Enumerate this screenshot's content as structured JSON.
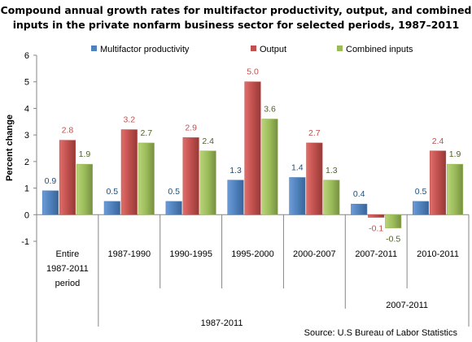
{
  "title_line1": "Compound annual growth rates for multifactor productivity, output, and combined",
  "title_line2": "inputs in the private nonfarm business sector for selected periods, 1987–2011",
  "source": "Source: U.S Bureau of Labor Statistics",
  "chart_data": {
    "type": "bar",
    "title": "Compound annual growth rates for multifactor productivity, output, and combined inputs in the private nonfarm business sector for selected periods, 1987–2011",
    "ylabel": "Percent change",
    "ylim": [
      -1,
      6
    ],
    "yticks": [
      "-1",
      "0",
      "1",
      "2",
      "3",
      "4",
      "5",
      "6"
    ],
    "legend": "top",
    "categories": [
      [
        "Entire",
        "1987-2011",
        "period"
      ],
      [
        "1987-1990"
      ],
      [
        "1990-1995"
      ],
      [
        "1995-2000"
      ],
      [
        "2000-2007"
      ],
      [
        "2007-2011"
      ],
      [
        "2010-2011"
      ]
    ],
    "group_labels": [
      {
        "text": "1987-2011",
        "from": 1,
        "to": 4
      },
      {
        "text": "2007-2011",
        "from": 5,
        "to": 6
      }
    ],
    "series": [
      {
        "name": "Multifactor productivity",
        "color": "#4F81BD",
        "values": [
          0.9,
          0.5,
          0.5,
          1.3,
          1.4,
          0.4,
          0.5
        ],
        "labels": [
          "0.9",
          "0.5",
          "0.5",
          "1.3",
          "1.4",
          "0.4",
          "0.5"
        ],
        "label_color": "#1F4E79"
      },
      {
        "name": "Output",
        "color": "#C0504D",
        "values": [
          2.8,
          3.2,
          2.9,
          5.0,
          2.7,
          -0.1,
          2.4
        ],
        "labels": [
          "2.8",
          "3.2",
          "2.9",
          "5.0",
          "2.7",
          "-0.1",
          "2.4"
        ],
        "label_color": "#C0504D"
      },
      {
        "name": "Combined inputs",
        "color": "#9BBB59",
        "values": [
          1.9,
          2.7,
          2.4,
          3.6,
          1.3,
          -0.5,
          1.9
        ],
        "labels": [
          "1.9",
          "2.7",
          "2.4",
          "3.6",
          "1.3",
          "-0.5",
          "1.9"
        ],
        "label_color": "#4F6228"
      }
    ],
    "grid": false
  }
}
